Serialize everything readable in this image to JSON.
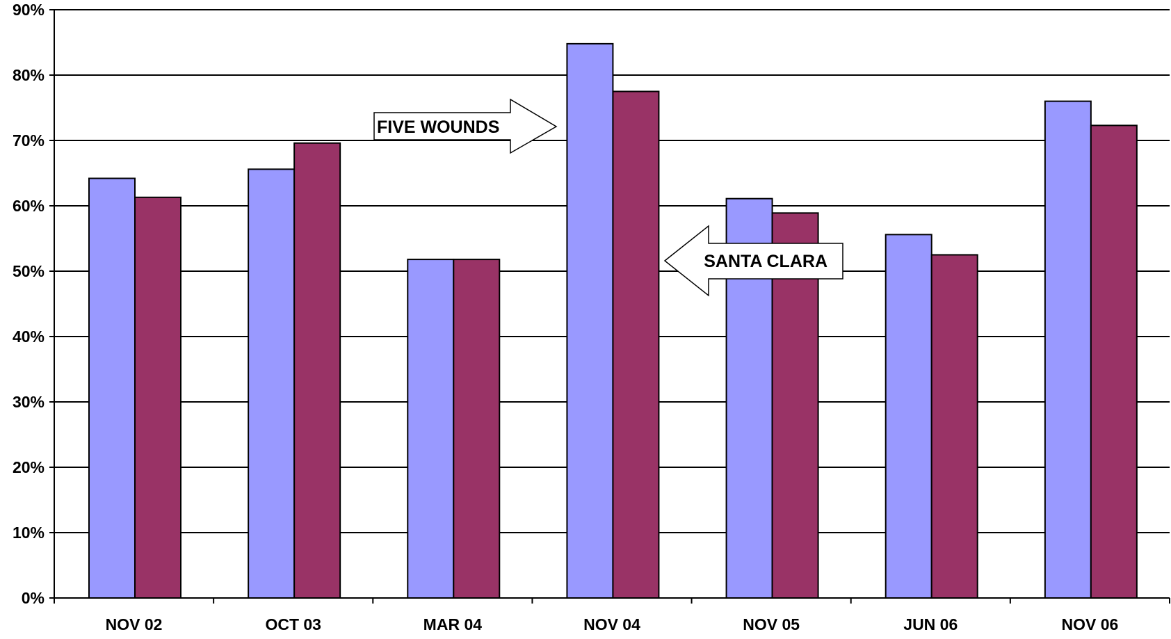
{
  "chart_data": {
    "type": "bar",
    "title": "",
    "xlabel": "",
    "ylabel": "",
    "categories": [
      "NOV 02",
      "OCT 03",
      "MAR 04",
      "NOV 04",
      "NOV 05",
      "JUN 06",
      "NOV 06"
    ],
    "series": [
      {
        "values": [
          64.2,
          65.6,
          51.8,
          84.8,
          61.1,
          55.6,
          76.0
        ],
        "color": "#9999FF"
      },
      {
        "values": [
          61.3,
          69.6,
          51.8,
          77.5,
          58.9,
          52.5,
          72.3
        ],
        "color": "#993366"
      }
    ],
    "ylim": [
      0,
      90
    ],
    "yticks": [
      "0%",
      "10%",
      "20%",
      "30%",
      "40%",
      "50%",
      "60%",
      "70%",
      "80%",
      "90%"
    ],
    "grid": true,
    "annotations": [
      {
        "text": "FIVE WOUNDS",
        "direction": "right",
        "target_category": "NOV 04",
        "target_series": 0
      },
      {
        "text": "SANTA CLARA",
        "direction": "left",
        "target_category": "NOV 04",
        "target_series": 1
      }
    ]
  }
}
